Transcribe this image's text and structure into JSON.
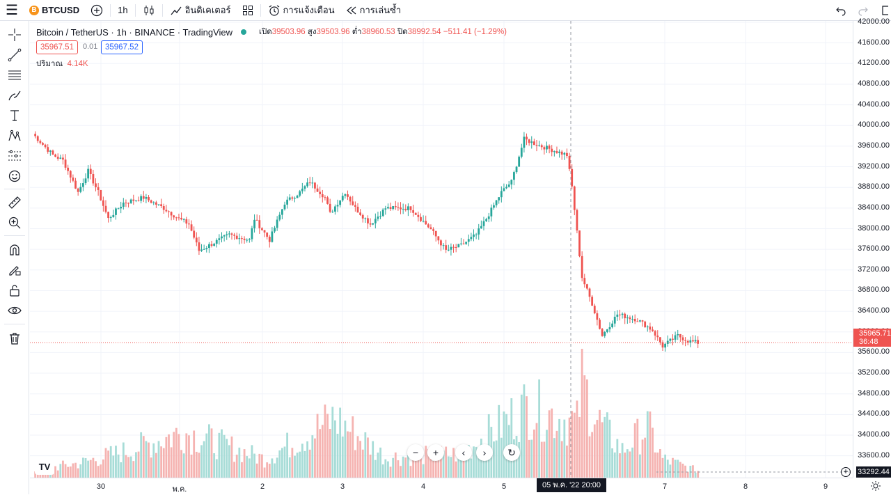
{
  "toolbar": {
    "symbol": "BTCUSD",
    "coin_letter": "B",
    "interval": "1h",
    "indicators_label": "อินดิเคเตอร์",
    "alerts_label": "การแจ้งเตือน",
    "replay_label": "การเล่นซ้ำ"
  },
  "legend": {
    "title": "Bitcoin / TetherUS · 1h · BINANCE · TradingView",
    "open_label": "เปิด",
    "open": "39503.96",
    "high_label": "สูง",
    "high": "39503.96",
    "low_label": "ต่ำ",
    "low": "38960.53",
    "close_label": "ปิด",
    "close": "38992.54",
    "change": "−511.41 (−1.29%)",
    "sell_price": "35967.51",
    "spread": "0.01",
    "buy_price": "35967.52",
    "volume_label": "ปริมาณ",
    "volume_value": "4.14K"
  },
  "price_axis": [
    "42000.00",
    "41600.00",
    "41200.00",
    "40800.00",
    "40400.00",
    "40000.00",
    "39600.00",
    "39200.00",
    "38800.00",
    "38400.00",
    "38000.00",
    "37600.00",
    "37200.00",
    "36800.00",
    "36400.00",
    "36000.00",
    "35600.00",
    "35200.00",
    "34800.00",
    "34400.00",
    "34000.00",
    "33600.00"
  ],
  "current_price": {
    "price": "35965.71",
    "countdown": "36:48"
  },
  "volume_axis_value": "33292.44",
  "time_axis": [
    "30",
    "พ.ค.",
    "2",
    "3",
    "4",
    "5",
    "7",
    "8",
    "9"
  ],
  "crosshair_time": "05 พ.ค. '22   20:00",
  "colors": {
    "up": "#26a69a",
    "down": "#ef5350",
    "up_vol": "#a7dcd7",
    "down_vol": "#f5b3b1"
  },
  "chart_data": {
    "type": "candlestick",
    "interval": "1h",
    "ylim": [
      33400,
      42000
    ],
    "x_labels": [
      "30",
      "พ.ค.",
      "2",
      "3",
      "4",
      "5",
      "7",
      "8",
      "9"
    ],
    "anchors": [
      [
        0,
        39900
      ],
      [
        8,
        39500
      ],
      [
        12,
        39400
      ],
      [
        18,
        38800
      ],
      [
        22,
        39200
      ],
      [
        26,
        38800
      ],
      [
        30,
        38300
      ],
      [
        36,
        38600
      ],
      [
        44,
        38700
      ],
      [
        52,
        38500
      ],
      [
        58,
        38300
      ],
      [
        62,
        38200
      ],
      [
        66,
        37700
      ],
      [
        70,
        37800
      ],
      [
        78,
        38000
      ],
      [
        86,
        37900
      ],
      [
        88,
        38300
      ],
      [
        94,
        37900
      ],
      [
        100,
        38600
      ],
      [
        106,
        38800
      ],
      [
        110,
        39000
      ],
      [
        116,
        38700
      ],
      [
        118,
        38400
      ],
      [
        124,
        38800
      ],
      [
        128,
        38500
      ],
      [
        134,
        38200
      ],
      [
        140,
        38500
      ],
      [
        150,
        38500
      ],
      [
        158,
        38100
      ],
      [
        164,
        37700
      ],
      [
        170,
        37800
      ],
      [
        176,
        38000
      ],
      [
        180,
        38300
      ],
      [
        186,
        38800
      ],
      [
        190,
        39000
      ],
      [
        195,
        39800
      ],
      [
        200,
        39700
      ],
      [
        206,
        39600
      ],
      [
        212,
        39500
      ],
      [
        214,
        38900
      ],
      [
        218,
        37200
      ],
      [
        222,
        36700
      ],
      [
        226,
        36100
      ],
      [
        232,
        36500
      ],
      [
        240,
        36400
      ],
      [
        246,
        36200
      ],
      [
        250,
        35900
      ],
      [
        256,
        36100
      ],
      [
        260,
        36000
      ],
      [
        264,
        35966
      ]
    ],
    "volume_peaks": [
      [
        0,
        400
      ],
      [
        20,
        900
      ],
      [
        38,
        1600
      ],
      [
        60,
        2700
      ],
      [
        92,
        1100
      ],
      [
        120,
        3500
      ],
      [
        140,
        1200
      ],
      [
        170,
        1400
      ],
      [
        196,
        4200
      ],
      [
        216,
        3200
      ],
      [
        218,
        5600
      ],
      [
        224,
        3400
      ],
      [
        234,
        1600
      ],
      [
        244,
        3000
      ],
      [
        250,
        1100
      ],
      [
        264,
        400
      ]
    ]
  }
}
